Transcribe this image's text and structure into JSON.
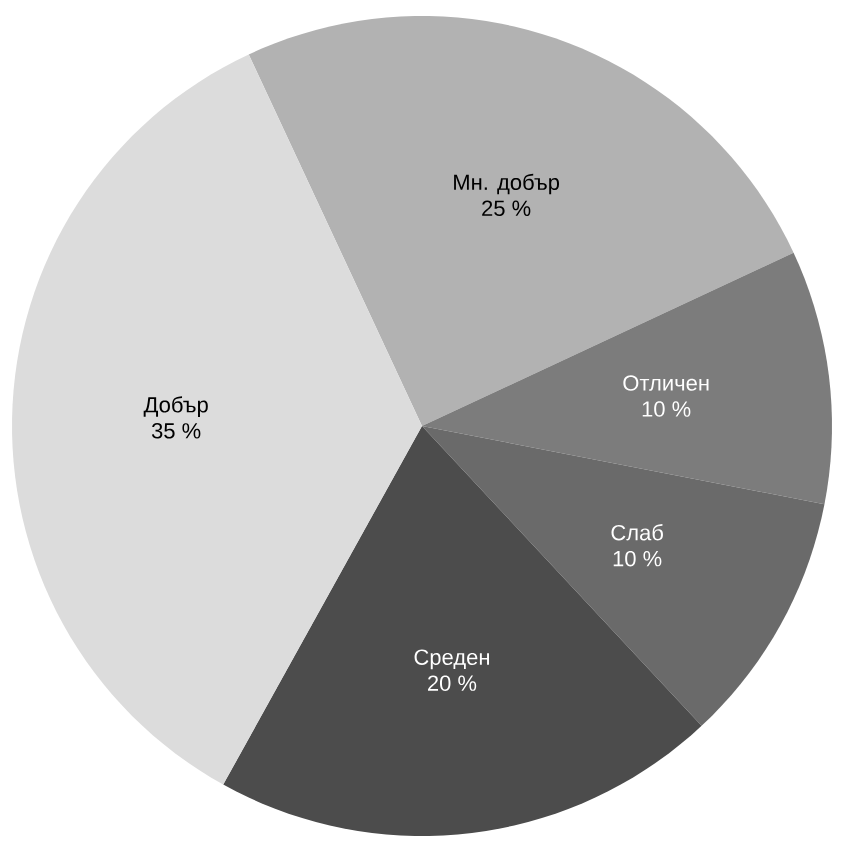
{
  "chart_data": {
    "type": "pie",
    "categories": [
      "Мн. добър",
      "Отличен",
      "Слаб",
      "Среден",
      "Добър"
    ],
    "values": [
      25,
      10,
      10,
      20,
      35
    ],
    "value_labels": [
      "25 %",
      "10 %",
      "10 %",
      "20 %",
      "35 %"
    ],
    "colors": [
      "#b2b2b2",
      "#7c7c7c",
      "#6a6a6a",
      "#4c4c4c",
      "#dcdcdc"
    ]
  }
}
